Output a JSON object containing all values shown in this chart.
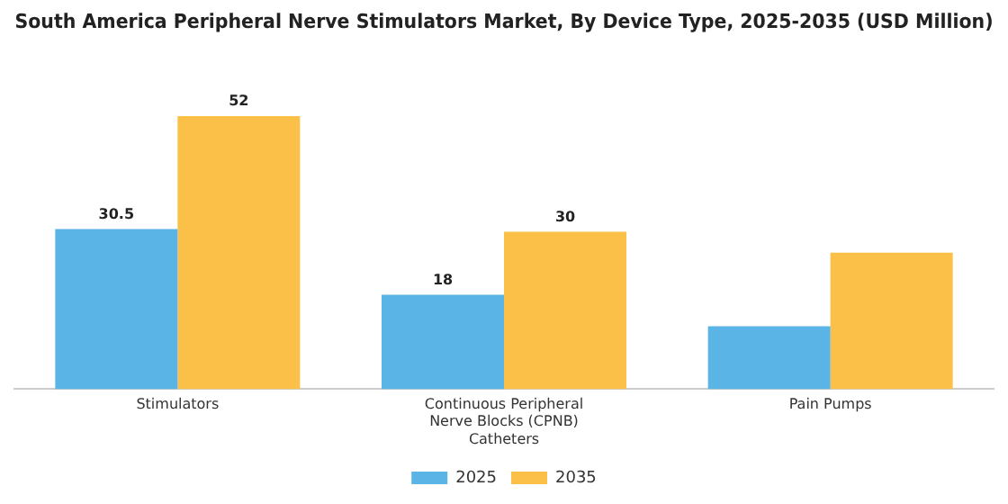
{
  "chart_data": {
    "type": "bar",
    "title": "South America Peripheral Nerve Stimulators Market, By Device Type, 2025-2035 (USD Million)",
    "categories": [
      "Stimulators",
      "Continuous Peripheral Nerve Blocks (CPNB) Catheters",
      "Pain Pumps"
    ],
    "series": [
      {
        "name": "2025",
        "color": "#5ab4e5",
        "values": [
          30.5,
          18,
          12
        ],
        "value_labels": [
          "30.5",
          "18",
          null
        ]
      },
      {
        "name": "2035",
        "color": "#fbc047",
        "values": [
          52,
          30,
          26
        ],
        "value_labels": [
          "52",
          "30",
          null
        ]
      }
    ],
    "legend": "bottom",
    "grid": false
  }
}
